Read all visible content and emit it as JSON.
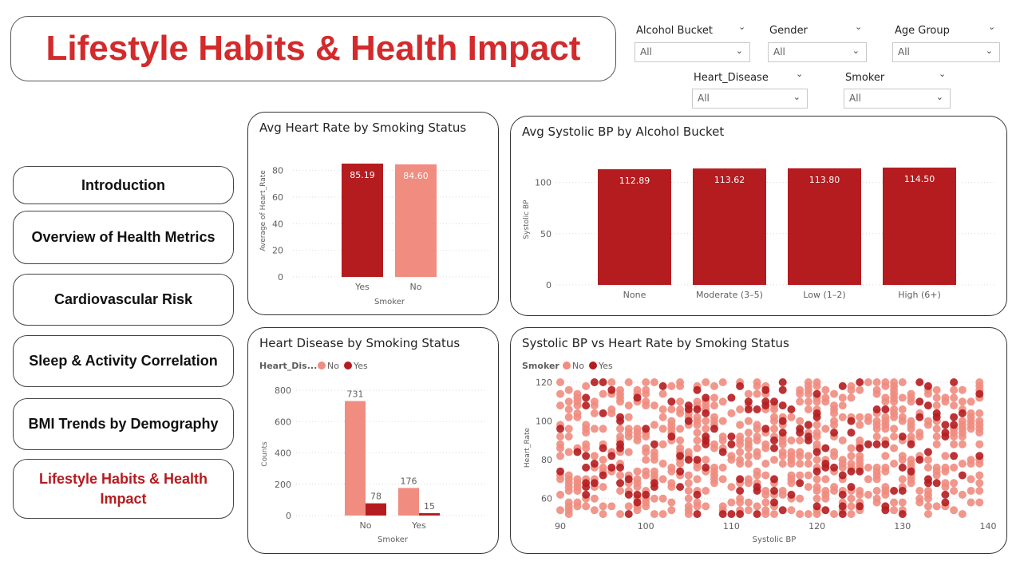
{
  "header": {
    "title": "Lifestyle Habits & Health Impact"
  },
  "slicers": [
    {
      "label": "Alcohol Bucket",
      "value": "All"
    },
    {
      "label": "Gender",
      "value": "All"
    },
    {
      "label": "Age Group",
      "value": "All"
    },
    {
      "label": "Heart_Disease",
      "value": "All"
    },
    {
      "label": "Smoker",
      "value": "All"
    }
  ],
  "nav": {
    "items": [
      {
        "label": "Introduction"
      },
      {
        "label": "Overview of Health Metrics"
      },
      {
        "label": "Cardiovascular Risk"
      },
      {
        "label": "Sleep & Activity Correlation"
      },
      {
        "label": "BMI Trends by Demography"
      },
      {
        "label": "Lifestyle Habits & Health Impact",
        "active": true
      }
    ]
  },
  "colors": {
    "dark": "#b51c1f",
    "light": "#f08c80",
    "title": "#d32a2c"
  },
  "chart_data": [
    {
      "type": "bar",
      "title": "Avg Heart Rate by Smoking Status",
      "xlabel": "Smoker",
      "ylabel": "Average of Heart_Rate",
      "categories": [
        "Yes",
        "No"
      ],
      "values": [
        85.19,
        84.6
      ],
      "data_labels": [
        "85.19",
        "84.60"
      ],
      "yticks": [
        0,
        20,
        40,
        60,
        80
      ],
      "ylim": [
        0,
        85.19
      ]
    },
    {
      "type": "bar",
      "title": "Avg Systolic BP by Alcohol Bucket",
      "xlabel": "",
      "ylabel": "Systolic BP",
      "categories": [
        "None",
        "Moderate (3–5)",
        "Low (1–2)",
        "High (6+)"
      ],
      "values": [
        112.89,
        113.62,
        113.8,
        114.5
      ],
      "data_labels": [
        "112.89",
        "113.62",
        "113.80",
        "114.50"
      ],
      "yticks": [
        0,
        50,
        100
      ],
      "ylim": [
        0,
        114.5
      ]
    },
    {
      "type": "bar",
      "title": "Heart Disease by Smoking Status",
      "xlabel": "Smoker",
      "ylabel": "Counts",
      "legend_title": "Heart_Dis...",
      "categories": [
        "No",
        "Yes"
      ],
      "series": [
        {
          "name": "No",
          "values": [
            731,
            176
          ],
          "data_labels": [
            "731",
            "176"
          ]
        },
        {
          "name": "Yes",
          "values": [
            78,
            15
          ],
          "data_labels": [
            "78",
            "15"
          ]
        }
      ],
      "yticks": [
        0,
        200,
        400,
        600,
        800
      ],
      "ylim": [
        0,
        800
      ]
    },
    {
      "type": "scatter",
      "title": "Systolic BP vs Heart Rate by Smoking Status",
      "xlabel": "Systolic BP",
      "ylabel": "Heart_Rate",
      "legend_title": "Smoker",
      "series_names": [
        "No",
        "Yes"
      ],
      "xticks": [
        90,
        100,
        110,
        120,
        130,
        140
      ],
      "yticks": [
        60,
        80,
        100,
        120
      ],
      "xlim": [
        90,
        140
      ],
      "ylim": [
        50,
        120
      ],
      "x_step": 1,
      "y_step": 2,
      "grid_density": 0.42,
      "yes_share": 0.22
    }
  ]
}
